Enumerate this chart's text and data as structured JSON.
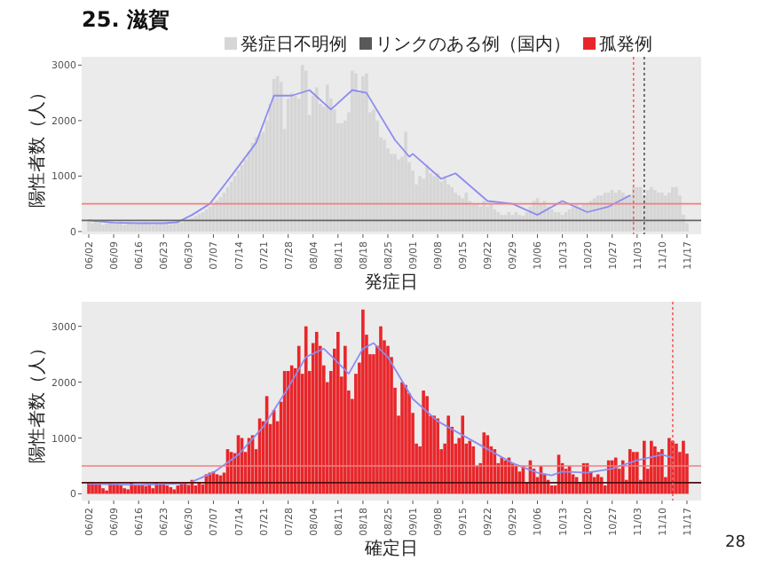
{
  "chart_data": [
    {
      "type": "bar",
      "title": "25. 滋賀",
      "legend": "top",
      "xlabel": "発症日",
      "ylabel": "陽性者数（人）",
      "x": [
        "--06-02",
        "--06-03",
        "--06-04",
        "--06-05",
        "--06-06",
        "--06-07",
        "--06-08",
        "--06-09",
        "--06-10",
        "--06-11",
        "--06-12",
        "--06-13",
        "--06-14",
        "--06-15",
        "--06-16",
        "--06-17",
        "--06-18",
        "--06-19",
        "--06-20",
        "--06-21",
        "--06-22",
        "--06-23",
        "--06-24",
        "--06-25",
        "--06-26",
        "--06-27",
        "--06-28",
        "--06-29",
        "--06-30",
        "--07-01",
        "--07-02",
        "--07-03",
        "--07-04",
        "--07-05",
        "--07-06",
        "--07-07",
        "--07-08",
        "--07-09",
        "--07-10",
        "--07-11",
        "--07-12",
        "--07-13",
        "--07-14",
        "--07-15",
        "--07-16",
        "--07-17",
        "--07-18",
        "--07-19",
        "--07-20",
        "--07-21",
        "--07-22",
        "--07-23",
        "--07-24",
        "--07-25",
        "--07-26",
        "--07-27",
        "--07-28",
        "--07-29",
        "--07-30",
        "--07-31",
        "--08-01",
        "--08-02",
        "--08-03",
        "--08-04",
        "--08-05",
        "--08-06",
        "--08-07",
        "--08-08",
        "--08-09",
        "--08-10",
        "--08-11",
        "--08-12",
        "--08-13",
        "--08-14",
        "--08-15",
        "--08-16",
        "--08-17",
        "--08-18",
        "--08-19",
        "--08-20",
        "--08-21",
        "--08-22",
        "--08-23",
        "--08-24",
        "--08-25",
        "--08-26",
        "--08-27",
        "--08-28",
        "--08-29",
        "--08-30",
        "--08-31",
        "--09-01",
        "--09-02",
        "--09-03",
        "--09-04",
        "--09-05",
        "--09-06",
        "--09-07",
        "--09-08",
        "--09-09",
        "--09-10",
        "--09-11",
        "--09-12",
        "--09-13",
        "--09-14",
        "--09-15",
        "--09-16",
        "--09-17",
        "--09-18",
        "--09-19",
        "--09-20",
        "--09-21",
        "--09-22",
        "--09-23",
        "--09-24",
        "--09-25",
        "--09-26",
        "--09-27",
        "--09-28",
        "--09-29",
        "--09-30",
        "--10-01",
        "--10-02",
        "--10-03",
        "--10-04",
        "--10-05",
        "--10-06",
        "--10-07",
        "--10-08",
        "--10-09",
        "--10-10",
        "--10-11",
        "--10-12",
        "--10-13",
        "--10-14",
        "--10-15",
        "--10-16",
        "--10-17",
        "--10-18",
        "--10-19",
        "--10-20",
        "--10-21",
        "--10-22",
        "--10-23",
        "--10-24",
        "--10-25",
        "--10-26",
        "--10-27",
        "--10-28",
        "--10-29",
        "--10-30",
        "--10-31",
        "--11-01",
        "--11-02",
        "--11-03",
        "--11-04",
        "--11-05",
        "--11-06",
        "--11-07",
        "--11-08",
        "--11-09",
        "--11-10",
        "--11-11",
        "--11-12",
        "--11-13",
        "--11-14",
        "--11-15",
        "--11-16",
        "--11-17"
      ],
      "xlim": [
        "--05-31",
        "--11-21"
      ],
      "xticks": [
        {
          "value": "--06-02",
          "label": "06/02"
        },
        {
          "value": "--06-09",
          "label": "06/09"
        },
        {
          "value": "--06-16",
          "label": "06/16"
        },
        {
          "value": "--06-23",
          "label": "06/23"
        },
        {
          "value": "--06-30",
          "label": "06/30"
        },
        {
          "value": "--07-07",
          "label": "07/07"
        },
        {
          "value": "--07-14",
          "label": "07/14"
        },
        {
          "value": "--07-21",
          "label": "07/21"
        },
        {
          "value": "--07-28",
          "label": "07/28"
        },
        {
          "value": "--08-04",
          "label": "08/04"
        },
        {
          "value": "--08-11",
          "label": "08/11"
        },
        {
          "value": "--08-18",
          "label": "08/18"
        },
        {
          "value": "--08-25",
          "label": "08/25"
        },
        {
          "value": "--09-01",
          "label": "09/01"
        },
        {
          "value": "--09-08",
          "label": "09/08"
        },
        {
          "value": "--09-15",
          "label": "09/15"
        },
        {
          "value": "--09-22",
          "label": "09/22"
        },
        {
          "value": "--09-29",
          "label": "09/29"
        },
        {
          "value": "--10-06",
          "label": "10/06"
        },
        {
          "value": "--10-13",
          "label": "10/13"
        },
        {
          "value": "--10-20",
          "label": "10/20"
        },
        {
          "value": "--10-27",
          "label": "10/27"
        },
        {
          "value": "--11-03",
          "label": "11/03"
        },
        {
          "value": "--11-10",
          "label": "11/10"
        },
        {
          "value": "--11-17",
          "label": "11/17"
        }
      ],
      "ylim": [
        -50,
        3150
      ],
      "yticks": [
        0,
        1000,
        2000,
        3000
      ],
      "series": [
        {
          "name": "発症日不明例",
          "color": "#d6d6d6",
          "values": [
            180,
            150,
            200,
            160,
            120,
            150,
            170,
            140,
            160,
            180,
            120,
            150,
            160,
            130,
            150,
            140,
            170,
            160,
            120,
            150,
            140,
            160,
            150,
            130,
            170,
            180,
            160,
            200,
            220,
            250,
            280,
            320,
            350,
            400,
            450,
            500,
            560,
            620,
            700,
            800,
            900,
            1000,
            1100,
            1200,
            1300,
            1450,
            1600,
            1700,
            1750,
            1800,
            2000,
            2300,
            2750,
            2800,
            2700,
            1850,
            2400,
            2500,
            2450,
            2400,
            3000,
            2900,
            2100,
            2450,
            2600,
            2300,
            2250,
            2650,
            2400,
            2200,
            1950,
            1950,
            2000,
            2150,
            2900,
            2850,
            2500,
            2800,
            2850,
            2150,
            2200,
            2000,
            1700,
            1650,
            1500,
            1400,
            1400,
            1300,
            1350,
            1800,
            1250,
            1100,
            850,
            1000,
            950,
            1200,
            1050,
            1000,
            1050,
            900,
            1000,
            850,
            800,
            700,
            650,
            600,
            700,
            550,
            500,
            500,
            450,
            550,
            450,
            500,
            400,
            350,
            300,
            300,
            350,
            300,
            350,
            300,
            280,
            350,
            450,
            550,
            600,
            500,
            550,
            450,
            400,
            350,
            350,
            300,
            350,
            400,
            450,
            500,
            450,
            500,
            500,
            550,
            600,
            650,
            650,
            700,
            700,
            750,
            700,
            750,
            700,
            650,
            650,
            800,
            800,
            800,
            650,
            750,
            800,
            750,
            700,
            700,
            650,
            700,
            800,
            800,
            650,
            300,
            150
          ]
        },
        {
          "name": "リンクのある例（国内）",
          "color": "#595959",
          "values": [
            null,
            null,
            null,
            null,
            null,
            null,
            null,
            null,
            null,
            null,
            null,
            null,
            null,
            null,
            null,
            null,
            null,
            null,
            null,
            null,
            null,
            null,
            null,
            null,
            null,
            null,
            null,
            null,
            null,
            null,
            null,
            null,
            null,
            null,
            null,
            null,
            null,
            null,
            null,
            null,
            null,
            null,
            null,
            null,
            null,
            null,
            null,
            null,
            null,
            null,
            null,
            null,
            null,
            null,
            null,
            null,
            null,
            null,
            null,
            null,
            null,
            null,
            null,
            null,
            null,
            null,
            null,
            null,
            null,
            null,
            null,
            null,
            null,
            null,
            null,
            null,
            null,
            null,
            null,
            null,
            null,
            null,
            null,
            null,
            null,
            null,
            null,
            null,
            null,
            null,
            null,
            null,
            null,
            null,
            null,
            null,
            null,
            null,
            null,
            null,
            null,
            null,
            null,
            null,
            null,
            null,
            null,
            null,
            null,
            null,
            null,
            null,
            null,
            null,
            null,
            null,
            null,
            null,
            null,
            null,
            null,
            null,
            null,
            null,
            null,
            null,
            null,
            null,
            null,
            null,
            null,
            null,
            null,
            null,
            null,
            null,
            null,
            null,
            null,
            null,
            null,
            null,
            null,
            null,
            null,
            null,
            null,
            null,
            null,
            null,
            null,
            null,
            null,
            null,
            null,
            null,
            null,
            null,
            null,
            null,
            null,
            null,
            null,
            null,
            null,
            null,
            null,
            null,
            null
          ]
        },
        {
          "type": "line",
          "color": "#8c8cf0",
          "x": [
            "--06-02",
            "--06-09",
            "--06-16",
            "--06-23",
            "--06-27",
            "--07-01",
            "--07-06",
            "--07-12",
            "--07-19",
            "--07-24",
            "--07-29",
            "--08-03",
            "--08-09",
            "--08-15",
            "--08-19",
            "--08-27",
            "--08-31",
            "--09-01",
            "--09-09",
            "--09-13",
            "--09-22",
            "--09-29",
            "--10-06",
            "--10-13",
            "--10-20",
            "--10-26",
            "--11-01"
          ],
          "values": [
            200,
            160,
            150,
            150,
            170,
            300,
            500,
            1000,
            1600,
            2450,
            2450,
            2550,
            2200,
            2550,
            2500,
            1650,
            1350,
            1400,
            950,
            1050,
            550,
            500,
            300,
            550,
            350,
            450,
            650
          ]
        }
      ],
      "ref_lines": [
        {
          "axis": "y",
          "value": 500,
          "color": "#f08080"
        },
        {
          "axis": "y",
          "value": 200,
          "color": "#666666"
        },
        {
          "axis": "x",
          "value": "--11-02",
          "color": "#ff5a5a",
          "line_style": "dotted"
        },
        {
          "axis": "x",
          "value": "--11-05",
          "color": "#555555",
          "line_style": "dotted"
        }
      ]
    },
    {
      "type": "bar",
      "xlabel": "確定日",
      "ylabel": "陽性者数（人）",
      "x": [
        "--06-02",
        "--06-03",
        "--06-04",
        "--06-05",
        "--06-06",
        "--06-07",
        "--06-08",
        "--06-09",
        "--06-10",
        "--06-11",
        "--06-12",
        "--06-13",
        "--06-14",
        "--06-15",
        "--06-16",
        "--06-17",
        "--06-18",
        "--06-19",
        "--06-20",
        "--06-21",
        "--06-22",
        "--06-23",
        "--06-24",
        "--06-25",
        "--06-26",
        "--06-27",
        "--06-28",
        "--06-29",
        "--06-30",
        "--07-01",
        "--07-02",
        "--07-03",
        "--07-04",
        "--07-05",
        "--07-06",
        "--07-07",
        "--07-08",
        "--07-09",
        "--07-10",
        "--07-11",
        "--07-12",
        "--07-13",
        "--07-14",
        "--07-15",
        "--07-16",
        "--07-17",
        "--07-18",
        "--07-19",
        "--07-20",
        "--07-21",
        "--07-22",
        "--07-23",
        "--07-24",
        "--07-25",
        "--07-26",
        "--07-27",
        "--07-28",
        "--07-29",
        "--07-30",
        "--07-31",
        "--08-01",
        "--08-02",
        "--08-03",
        "--08-04",
        "--08-05",
        "--08-06",
        "--08-07",
        "--08-08",
        "--08-09",
        "--08-10",
        "--08-11",
        "--08-12",
        "--08-13",
        "--08-14",
        "--08-15",
        "--08-16",
        "--08-17",
        "--08-18",
        "--08-19",
        "--08-20",
        "--08-21",
        "--08-22",
        "--08-23",
        "--08-24",
        "--08-25",
        "--08-26",
        "--08-27",
        "--08-28",
        "--08-29",
        "--08-30",
        "--08-31",
        "--09-01",
        "--09-02",
        "--09-03",
        "--09-04",
        "--09-05",
        "--09-06",
        "--09-07",
        "--09-08",
        "--09-09",
        "--09-10",
        "--09-11",
        "--09-12",
        "--09-13",
        "--09-14",
        "--09-15",
        "--09-16",
        "--09-17",
        "--09-18",
        "--09-19",
        "--09-20",
        "--09-21",
        "--09-22",
        "--09-23",
        "--09-24",
        "--09-25",
        "--09-26",
        "--09-27",
        "--09-28",
        "--09-29",
        "--09-30",
        "--10-01",
        "--10-02",
        "--10-03",
        "--10-04",
        "--10-05",
        "--10-06",
        "--10-07",
        "--10-08",
        "--10-09",
        "--10-10",
        "--10-11",
        "--10-12",
        "--10-13",
        "--10-14",
        "--10-15",
        "--10-16",
        "--10-17",
        "--10-18",
        "--10-19",
        "--10-20",
        "--10-21",
        "--10-22",
        "--10-23",
        "--10-24",
        "--10-25",
        "--10-26",
        "--10-27",
        "--10-28",
        "--10-29",
        "--10-30",
        "--10-31",
        "--11-01",
        "--11-02",
        "--11-03",
        "--11-04",
        "--11-05",
        "--11-06",
        "--11-07",
        "--11-08",
        "--11-09",
        "--11-10",
        "--11-11",
        "--11-12",
        "--11-13",
        "--11-14",
        "--11-15",
        "--11-16",
        "--11-17"
      ],
      "xlim": [
        "--05-31",
        "--11-21"
      ],
      "xticks": [
        {
          "value": "--06-02",
          "label": "06/02"
        },
        {
          "value": "--06-09",
          "label": "06/09"
        },
        {
          "value": "--06-16",
          "label": "06/16"
        },
        {
          "value": "--06-23",
          "label": "06/23"
        },
        {
          "value": "--06-30",
          "label": "06/30"
        },
        {
          "value": "--07-07",
          "label": "07/07"
        },
        {
          "value": "--07-14",
          "label": "07/14"
        },
        {
          "value": "--07-21",
          "label": "07/21"
        },
        {
          "value": "--07-28",
          "label": "07/28"
        },
        {
          "value": "--08-04",
          "label": "08/04"
        },
        {
          "value": "--08-11",
          "label": "08/11"
        },
        {
          "value": "--08-18",
          "label": "08/18"
        },
        {
          "value": "--08-25",
          "label": "08/25"
        },
        {
          "value": "--09-01",
          "label": "09/01"
        },
        {
          "value": "--09-08",
          "label": "09/08"
        },
        {
          "value": "--09-15",
          "label": "09/15"
        },
        {
          "value": "--09-22",
          "label": "09/22"
        },
        {
          "value": "--09-29",
          "label": "09/29"
        },
        {
          "value": "--10-06",
          "label": "10/06"
        },
        {
          "value": "--10-13",
          "label": "10/13"
        },
        {
          "value": "--10-20",
          "label": "10/20"
        },
        {
          "value": "--10-27",
          "label": "10/27"
        },
        {
          "value": "--11-03",
          "label": "11/03"
        },
        {
          "value": "--11-10",
          "label": "11/10"
        },
        {
          "value": "--11-17",
          "label": "11/17"
        }
      ],
      "ylim": [
        -120,
        3440
      ],
      "yticks": [
        0,
        1000,
        2000,
        3000
      ],
      "series": [
        {
          "name": "孤発例",
          "color": "#e8262a",
          "values": [
            200,
            210,
            180,
            190,
            100,
            60,
            190,
            180,
            170,
            150,
            100,
            80,
            200,
            150,
            160,
            150,
            140,
            160,
            100,
            200,
            180,
            170,
            150,
            120,
            80,
            150,
            200,
            190,
            160,
            250,
            150,
            200,
            170,
            350,
            380,
            400,
            350,
            330,
            380,
            800,
            750,
            730,
            1050,
            1000,
            750,
            1000,
            1050,
            800,
            1350,
            1300,
            1750,
            1250,
            1500,
            1300,
            1650,
            2200,
            2200,
            2300,
            2250,
            2650,
            2150,
            3000,
            2200,
            2700,
            2900,
            2650,
            2300,
            2000,
            2200,
            2600,
            2900,
            2100,
            2650,
            1850,
            1700,
            2150,
            2350,
            3300,
            2850,
            2500,
            2500,
            2650,
            3000,
            2750,
            2650,
            2450,
            1900,
            1400,
            2000,
            1950,
            1800,
            1450,
            900,
            850,
            1850,
            1750,
            1400,
            1400,
            1350,
            800,
            900,
            1400,
            1200,
            900,
            1000,
            1400,
            900,
            950,
            850,
            500,
            550,
            1100,
            1050,
            850,
            800,
            550,
            650,
            600,
            650,
            550,
            500,
            400,
            500,
            200,
            600,
            450,
            300,
            500,
            350,
            250,
            150,
            150,
            700,
            550,
            450,
            500,
            350,
            300,
            200,
            550,
            550,
            400,
            300,
            350,
            300,
            150,
            600,
            600,
            650,
            450,
            600,
            250,
            800,
            750,
            750,
            250,
            950,
            450,
            950,
            850,
            750,
            800,
            300,
            1000,
            950,
            900,
            750,
            950,
            720
          ]
        },
        {
          "type": "line",
          "color": "#8c8cf0",
          "x": [
            "--06-02",
            "--06-16",
            "--06-30",
            "--07-04",
            "--07-07",
            "--07-14",
            "--07-21",
            "--07-28",
            "--08-02",
            "--08-07",
            "--08-11",
            "--08-14",
            "--08-18",
            "--08-21",
            "--08-25",
            "--09-01",
            "--09-08",
            "--09-15",
            "--09-22",
            "--09-29",
            "--10-06",
            "--10-10",
            "--10-13",
            "--10-20",
            "--10-27",
            "--11-03",
            "--11-10",
            "--11-13"
          ],
          "values": [
            180,
            160,
            190,
            300,
            380,
            700,
            1200,
            1900,
            2450,
            2600,
            2350,
            2150,
            2600,
            2700,
            2450,
            1700,
            1300,
            1050,
            800,
            550,
            380,
            330,
            400,
            380,
            450,
            600,
            700,
            650
          ]
        }
      ],
      "ref_lines": [
        {
          "axis": "y",
          "value": 500,
          "color": "#f08080"
        },
        {
          "axis": "y",
          "value": 200,
          "color": "#4d1010"
        },
        {
          "axis": "x",
          "value": "--11-13",
          "color": "#ff5a5a",
          "line_style": "dotted"
        }
      ],
      "annotations": [
        "28"
      ]
    }
  ]
}
